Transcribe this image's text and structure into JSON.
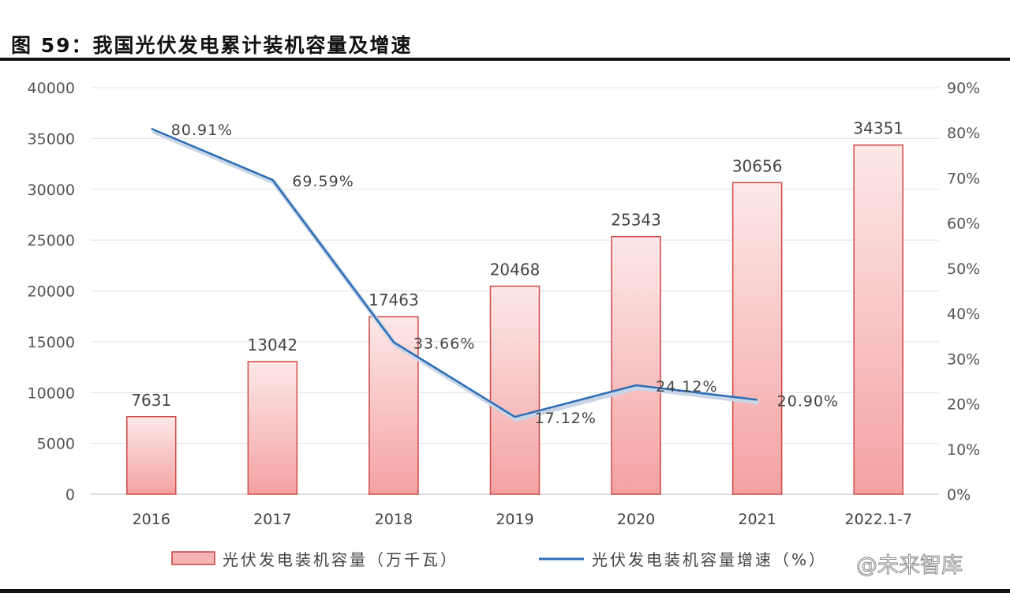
{
  "title": "图 59：我国光伏发电累计装机容量及增速",
  "watermark": "@未来智库",
  "chart_data": {
    "type": "bar+line",
    "categories": [
      "2016",
      "2017",
      "2018",
      "2019",
      "2020",
      "2021",
      "2022.1-7"
    ],
    "series": [
      {
        "name": "光伏发电装机容量（万千瓦）",
        "type": "bar",
        "axis": "left",
        "color": "#f4a6a6",
        "values": [
          7631,
          13042,
          17463,
          20468,
          25343,
          30656,
          34351
        ],
        "labels": [
          "7631",
          "13042",
          "17463",
          "20468",
          "25343",
          "30656",
          "34351"
        ]
      },
      {
        "name": "光伏发电装机容量增速（%）",
        "type": "line",
        "axis": "right",
        "color": "#2e6db4",
        "values": [
          80.91,
          69.59,
          33.66,
          17.12,
          24.12,
          20.9,
          null
        ],
        "labels": [
          "80.91%",
          "69.59%",
          "33.66%",
          "17.12%",
          "24.12%",
          "20.90%",
          ""
        ]
      }
    ],
    "left_axis": {
      "range": [
        0,
        40000
      ],
      "ticks": [
        "0",
        "5000",
        "10000",
        "15000",
        "20000",
        "25000",
        "30000",
        "35000",
        "40000"
      ]
    },
    "right_axis": {
      "range": [
        0,
        90
      ],
      "ticks": [
        "0%",
        "10%",
        "20%",
        "30%",
        "40%",
        "50%",
        "60%",
        "70%",
        "80%",
        "90%"
      ]
    },
    "grid": true,
    "legend": "bottom"
  }
}
